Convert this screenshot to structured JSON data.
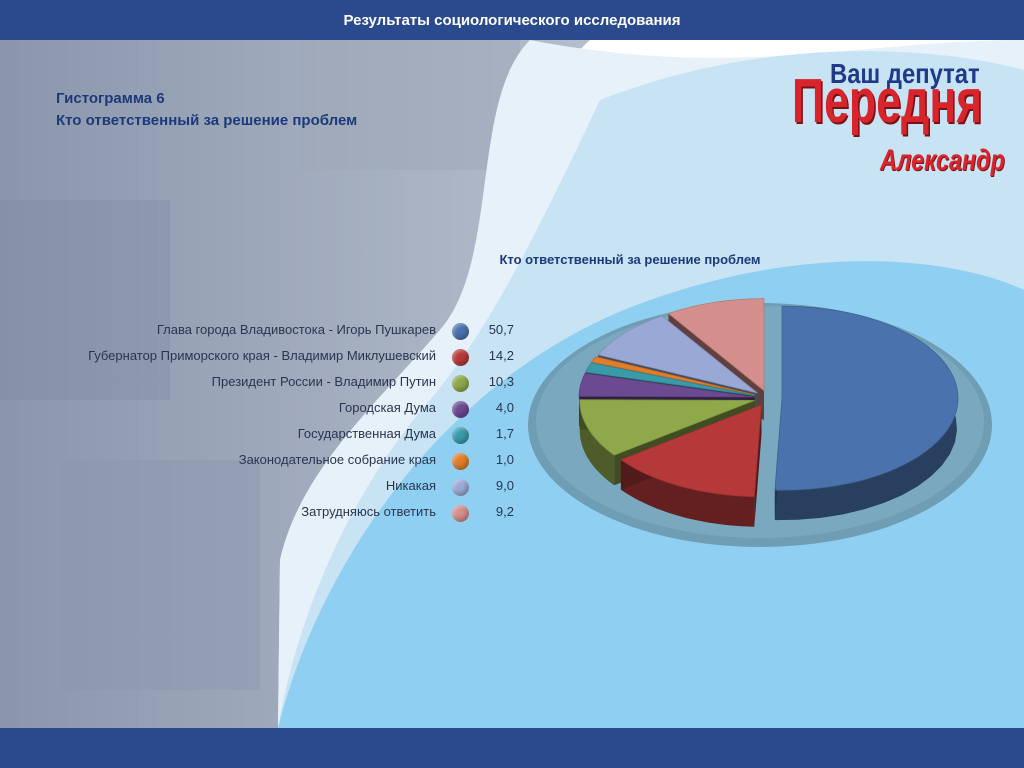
{
  "header": {
    "title": "Результаты социологического исследования"
  },
  "heading": {
    "line1": "Гистограмма 6",
    "line2": "Кто ответственный за решение проблем"
  },
  "logo": {
    "line1": "Ваш депутат",
    "line2": "Передня",
    "line3": "Александр"
  },
  "colors": {
    "bar": "#2b4a8e",
    "accent_red": "#d8242b",
    "title": "#1c3a7a"
  },
  "chart_data": {
    "type": "pie",
    "title": "Кто ответственный за решение проблем",
    "categories": [
      "Глава города Владивостока - Игорь Пушкарев",
      "Губернатор Приморского края - Владимир Миклушевский",
      "Президент России - Владимир Путин",
      "Городская Дума",
      "Государственная Дума",
      "Законодательное собрание края",
      "Никакая",
      "Затрудняюсь ответить"
    ],
    "value_labels": [
      "50,7",
      "14,2",
      "10,3",
      "4,0",
      "1,7",
      "1,0",
      "9,0",
      "9,2"
    ],
    "values": [
      50.7,
      14.2,
      10.3,
      4.0,
      1.7,
      1.0,
      9.0,
      9.2
    ],
    "colors": [
      "#4a72ad",
      "#b6393a",
      "#8ea84a",
      "#6c4a91",
      "#3a9aaa",
      "#e07e2a",
      "#9aa8d6",
      "#d48e8c"
    ],
    "legend_position": "left",
    "style": "3d-exploded"
  }
}
